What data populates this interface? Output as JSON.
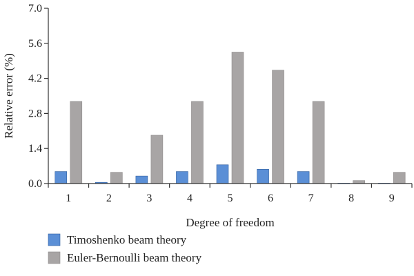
{
  "chart_data": {
    "type": "bar",
    "xlabel": "Degree of freedom",
    "ylabel": "Relative error (%)",
    "categories": [
      "1",
      "2",
      "3",
      "4",
      "5",
      "6",
      "7",
      "8",
      "9"
    ],
    "ylim": [
      0,
      7.0
    ],
    "yticks": [
      "0.0",
      "1.4",
      "2.8",
      "4.2",
      "5.6",
      "7.0"
    ],
    "grid": false,
    "legend_position": "bottom-left",
    "series": [
      {
        "name": "Timoshenko beam theory",
        "color": "#5b8fd6",
        "values": [
          0.48,
          0.05,
          0.3,
          0.48,
          0.75,
          0.57,
          0.48,
          0.01,
          0.01
        ]
      },
      {
        "name": "Euler-Bernoulli beam theory",
        "color": "#a8a5a5",
        "values": [
          3.28,
          0.45,
          1.93,
          3.28,
          5.25,
          4.53,
          3.28,
          0.12,
          0.45
        ]
      }
    ]
  }
}
